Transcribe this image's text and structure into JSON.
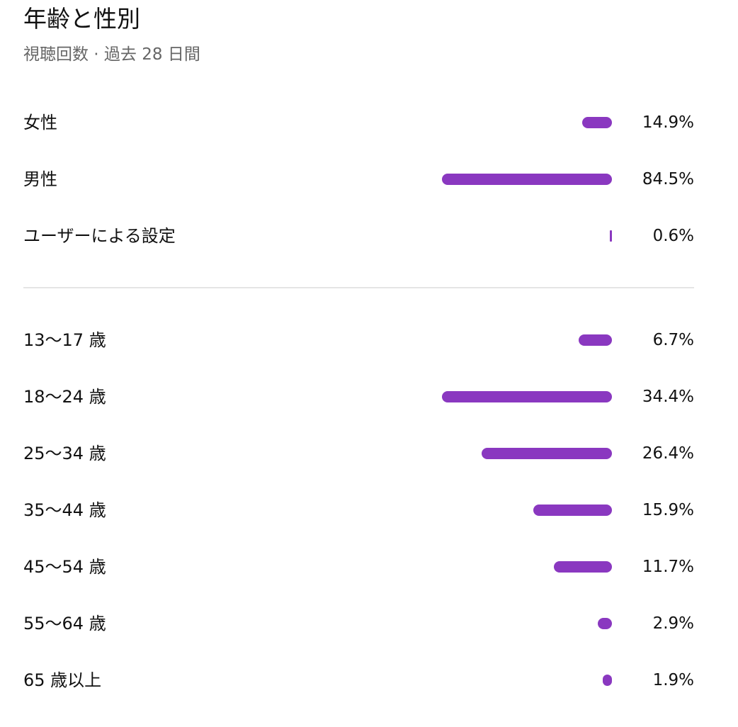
{
  "header": {
    "title": "年齢と性別",
    "subtitle": "視聴回数 · 過去 28 日間"
  },
  "colors": {
    "bar": "#8a38c0",
    "divider": "#e5e5e5"
  },
  "gender": [
    {
      "label": "女性",
      "pct": "14.9%",
      "value": 14.9
    },
    {
      "label": "男性",
      "pct": "84.5%",
      "value": 84.5
    },
    {
      "label": "ユーザーによる設定",
      "pct": "0.6%",
      "value": 0.6
    }
  ],
  "age": [
    {
      "label": "13〜17 歳",
      "pct": "6.7%",
      "value": 6.7
    },
    {
      "label": "18〜24 歳",
      "pct": "34.4%",
      "value": 34.4
    },
    {
      "label": "25〜34 歳",
      "pct": "26.4%",
      "value": 26.4
    },
    {
      "label": "35〜44 歳",
      "pct": "15.9%",
      "value": 15.9
    },
    {
      "label": "45〜54 歳",
      "pct": "11.7%",
      "value": 11.7
    },
    {
      "label": "55〜64 歳",
      "pct": "2.9%",
      "value": 2.9
    },
    {
      "label": "65 歳以上",
      "pct": "1.9%",
      "value": 1.9
    }
  ]
}
